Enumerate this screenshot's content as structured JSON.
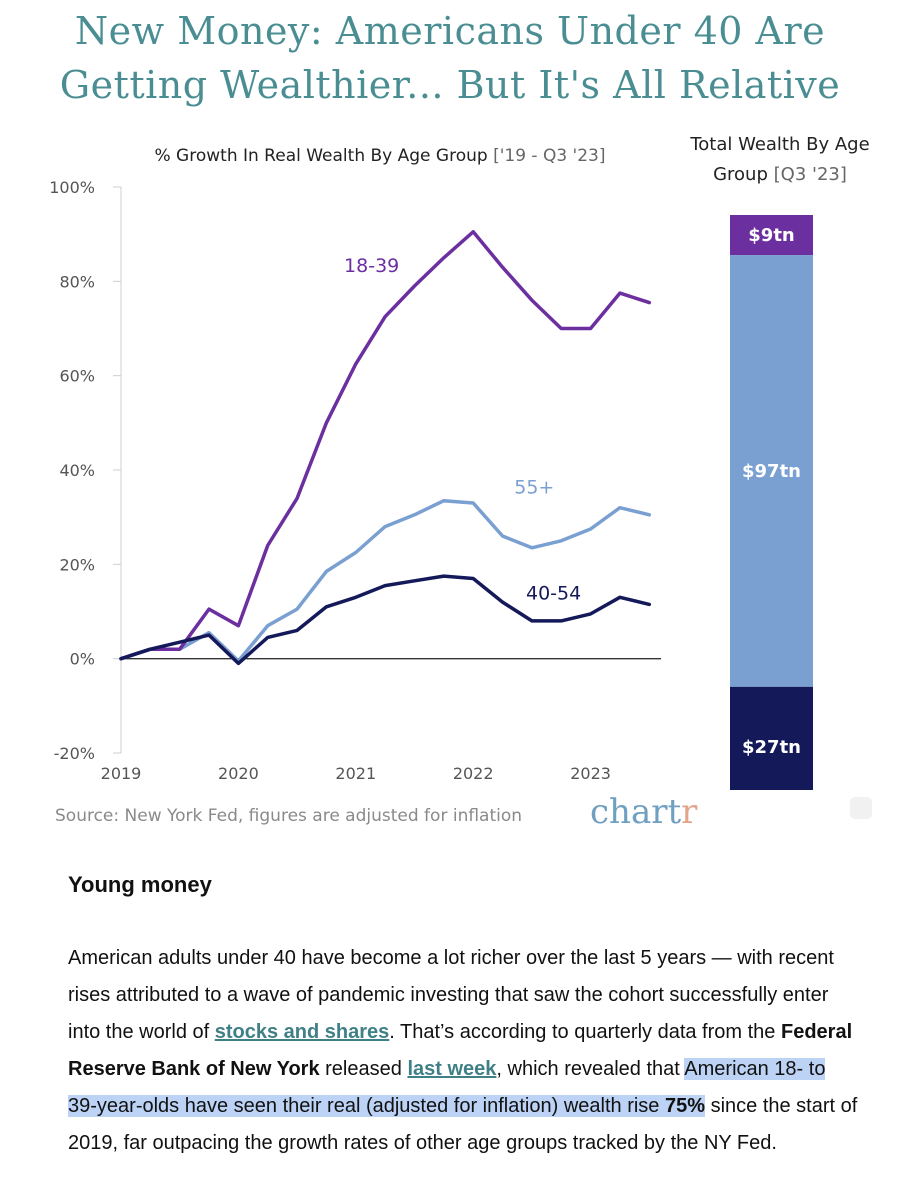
{
  "headline": {
    "line1": "New Money: Americans Under 40 Are",
    "line2": "Getting Wealthier... But It's All Relative"
  },
  "chart_data": [
    {
      "type": "line",
      "title": "% Growth In Real Wealth By Age Group",
      "subtitle": "['19 - Q3 '23]",
      "xlabel": "",
      "ylabel": "",
      "x_ticks": [
        "2019",
        "2020",
        "2021",
        "2022",
        "2023"
      ],
      "y_ticks": [
        "100%",
        "80%",
        "60%",
        "40%",
        "20%",
        "0%",
        "-20%"
      ],
      "xlim": [
        2019.0,
        2023.6
      ],
      "ylim": [
        -20,
        100
      ],
      "grid": false,
      "x": [
        2019.0,
        2019.25,
        2019.5,
        2019.75,
        2020.0,
        2020.25,
        2020.5,
        2020.75,
        2021.0,
        2021.25,
        2021.5,
        2021.75,
        2022.0,
        2022.25,
        2022.5,
        2022.75,
        2023.0,
        2023.25,
        2023.5
      ],
      "series": [
        {
          "name": "18-39",
          "color": "#6b2fa0",
          "values": [
            0,
            2,
            2,
            10.5,
            7,
            24,
            34,
            50,
            62.5,
            72.5,
            79,
            85,
            90.5,
            83,
            76,
            70,
            70,
            77.5,
            75.5
          ]
        },
        {
          "name": "55+",
          "color": "#7a9fd1",
          "values": [
            0,
            2,
            2,
            5.5,
            -0.5,
            7,
            10.5,
            18.5,
            22.5,
            28,
            30.5,
            33.5,
            33,
            26,
            23.5,
            25,
            27.5,
            32,
            30.5
          ]
        },
        {
          "name": "40-54",
          "color": "#14195a",
          "values": [
            0,
            2,
            3.5,
            5,
            -1,
            4.5,
            6,
            11,
            13,
            15.5,
            16.5,
            17.5,
            17,
            12,
            8,
            8,
            9.5,
            13,
            11.5
          ]
        }
      ]
    },
    {
      "type": "bar",
      "title": "Total Wealth By Age",
      "subtitle": "Group",
      "subtitle_note": "[Q3 '23]",
      "stacked": true,
      "categories": [
        "18-39",
        "55+",
        "40-54"
      ],
      "values": [
        9,
        97,
        27
      ],
      "labels": [
        "$9tn",
        "$97tn",
        "$27tn"
      ],
      "colors": [
        "#6b2fa0",
        "#7a9fd1",
        "#14195a"
      ]
    }
  ],
  "source_text": "Source: New York Fed, figures are adjusted for inflation",
  "logo": {
    "main": "chart",
    "accent": "r"
  },
  "article": {
    "heading": "Young money",
    "p1": "American adults under 40 have become a lot richer over the last 5 years — with recent rises attributed to a wave of pandemic investing that saw the cohort successfully enter into the world of ",
    "link1": "stocks and shares",
    "p2": ". That’s according to quarterly data from the ",
    "bold1": "Federal Reserve Bank of New York",
    "p3": " released ",
    "link2": "last week",
    "p4": ", which revealed that ",
    "highlight": "American 18- to 39-year-olds have seen their real (adjusted for inflation) wealth rise ",
    "highlight_bold": "75%",
    "p5": " since the start of 2019, far outpacing the growth rates of other age groups tracked by the NY Fed."
  },
  "colors": {
    "headline": "#4a8e93",
    "link": "#3f7f86",
    "highlight": "#bcd3f5"
  }
}
